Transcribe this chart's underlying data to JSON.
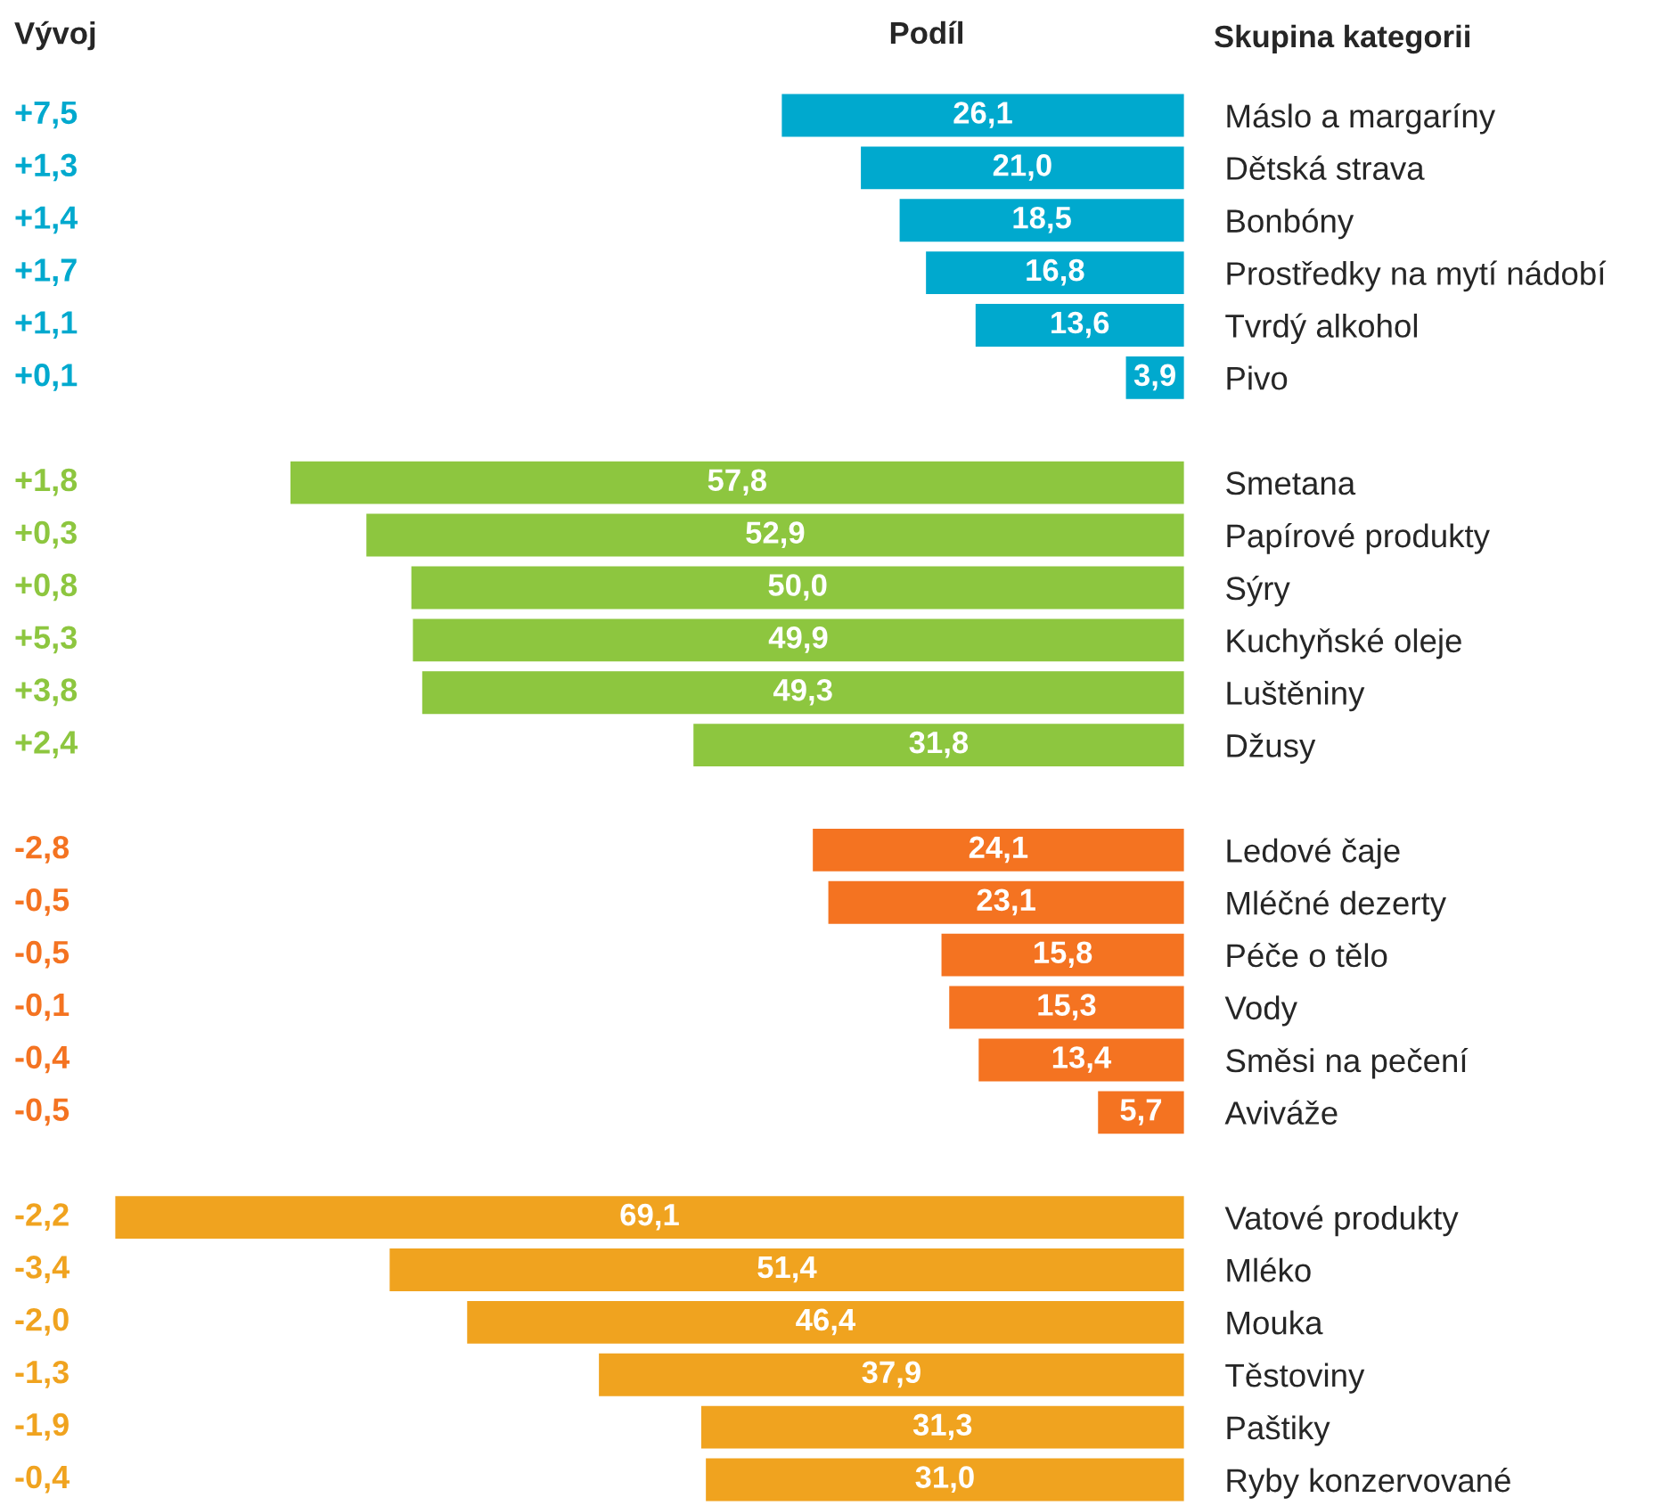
{
  "chart_data": {
    "type": "bar",
    "orientation": "horizontal",
    "xlabel": "Podíl",
    "ylabel": "Skupina kategorii",
    "tick_labels": "y",
    "grid": false,
    "legend": false,
    "categories": [
      "Máslo a margaríny",
      "Dětská strava",
      "Bonbóny",
      "Prostředky na mytí nádobí",
      "Tvrdý alkohol",
      "Pivo",
      null,
      "Smetana",
      "Papírové produkty",
      "Sýry",
      "Kuchyňské oleje",
      "Luštěniny",
      "Džusy",
      null,
      "Ledové čaje",
      "Mléčné dezerty",
      "Péče o tělo",
      "Vody",
      "Směsi na pečení",
      "Aviváže",
      null,
      "Vatové produkty",
      "Mléko",
      "Mouka",
      "Těstoviny",
      "Paštiky",
      "Ryby konzervované"
    ],
    "values": [
      26.1,
      21.0,
      18.5,
      16.8,
      13.6,
      3.9,
      null,
      57.8,
      52.9,
      50.0,
      49.9,
      49.3,
      31.8,
      null,
      24.1,
      23.1,
      15.8,
      15.3,
      13.4,
      5.7,
      null,
      69.1,
      51.4,
      46.4,
      37.9,
      31.3,
      31.0
    ],
    "value_labels": [
      "26,1",
      "21,0",
      "18,5",
      "16,8",
      "13,6",
      "3,9",
      null,
      "57,8",
      "52,9",
      "50,0",
      "49,9",
      "49,3",
      "31,8",
      null,
      "24,1",
      "23,1",
      "15,8",
      "15,3",
      "13,4",
      "5,7",
      null,
      "69,1",
      "51,4",
      "46,4",
      "37,9",
      "31,3",
      "31,0"
    ],
    "colors": [
      "#00a9ce",
      "#00a9ce",
      "#00a9ce",
      "#00a9ce",
      "#00a9ce",
      "#00a9ce",
      null,
      "#8dc63f",
      "#8dc63f",
      "#8dc63f",
      "#8dc63f",
      "#8dc63f",
      "#8dc63f",
      null,
      "#f47321",
      "#f47321",
      "#f47321",
      "#f47321",
      "#f47321",
      "#f47321",
      null,
      "#f0a31f",
      "#f0a31f",
      "#f0a31f",
      "#f0a31f",
      "#f0a31f",
      "#f0a31f"
    ],
    "annotations": [
      "Vývoj",
      "+7,5",
      "+1,3",
      "+1,4",
      "+1,7",
      "+1,1",
      "+0,1",
      "+1,8",
      "+0,3",
      "+0,8",
      "+5,3",
      "+3,8",
      "+2,4",
      "-2,8",
      "-0,5",
      "-0,5",
      "-0,1",
      "-0,4",
      "-0,5",
      "-2,2",
      "-3,4",
      "-2,0",
      "-1,3",
      "-1,9",
      "-0,4"
    ]
  }
}
